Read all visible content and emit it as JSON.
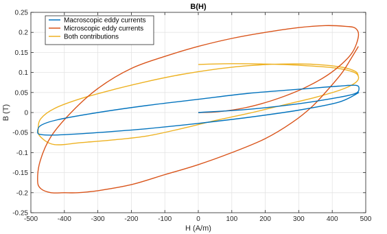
{
  "chart_data": {
    "type": "line",
    "title": "B(H)",
    "xlabel": "H (A/m)",
    "ylabel": "B (T)",
    "xlim": [
      -500,
      500
    ],
    "ylim": [
      -0.25,
      0.25
    ],
    "xticks": [
      -500,
      -400,
      -300,
      -200,
      -100,
      0,
      100,
      200,
      300,
      400,
      500
    ],
    "yticks": [
      0.25,
      0.2,
      0.15,
      0.1,
      0.05,
      0,
      -0.05,
      -0.1,
      -0.15,
      -0.2,
      -0.25
    ],
    "xtick_labels": [
      "-500",
      "-400",
      "-300",
      "-200",
      "-100",
      "0",
      "100",
      "200",
      "300",
      "400",
      "500"
    ],
    "ytick_labels": [
      "0.25",
      "0.2",
      "0.15",
      "0.1",
      "0.05",
      "0",
      "-0.05",
      "-0.1",
      "-0.15",
      "-0.2",
      "-0.25"
    ],
    "grid": true,
    "legend_position": "top-left",
    "series": [
      {
        "name": "Macroscopic eddy currents",
        "color": "#0072BD",
        "x": [
          0,
          150,
          300,
          420,
          470,
          480,
          470,
          420,
          300,
          150,
          0,
          -150,
          -300,
          -420,
          -470,
          -480,
          -470,
          -420,
          -300,
          -150,
          0,
          150,
          300,
          420,
          480
        ],
        "y": [
          0,
          0.008,
          0.022,
          0.038,
          0.048,
          0.06,
          0.068,
          0.066,
          0.058,
          0.048,
          0.033,
          0.018,
          0.0,
          -0.018,
          -0.032,
          -0.048,
          -0.055,
          -0.056,
          -0.05,
          -0.04,
          -0.027,
          -0.012,
          0.006,
          0.026,
          0.05
        ]
      },
      {
        "name": "Microscopic eddy currents",
        "color": "#D95319",
        "x": [
          0,
          60,
          140,
          220,
          300,
          370,
          420,
          460,
          478,
          470,
          440,
          380,
          300,
          200,
          100,
          0,
          -100,
          -200,
          -300,
          -380,
          -440,
          -472,
          -480,
          -470,
          -440,
          -400,
          -360,
          -300,
          -200,
          -100,
          0,
          100,
          200,
          280,
          340,
          390,
          430,
          460,
          478
        ],
        "y": [
          0,
          0.002,
          0.012,
          0.03,
          0.055,
          0.085,
          0.115,
          0.15,
          0.19,
          0.21,
          0.215,
          0.217,
          0.212,
          0.2,
          0.185,
          0.165,
          0.14,
          0.11,
          0.06,
          0.0,
          -0.06,
          -0.12,
          -0.17,
          -0.19,
          -0.2,
          -0.2,
          -0.2,
          -0.195,
          -0.18,
          -0.155,
          -0.13,
          -0.1,
          -0.065,
          -0.025,
          0.015,
          0.06,
          0.1,
          0.14,
          0.165
        ]
      },
      {
        "name": "Both contributions",
        "color": "#EDB120",
        "x": [
          0,
          100,
          200,
          300,
          400,
          460,
          478,
          470,
          430,
          350,
          250,
          150,
          50,
          -50,
          -150,
          -250,
          -350,
          -430,
          -472,
          -478,
          -470,
          -430,
          -350,
          -250,
          -150,
          -50,
          50,
          150,
          250,
          350,
          430,
          470,
          478
        ],
        "y": [
          0.12,
          0.122,
          0.121,
          0.118,
          0.112,
          0.102,
          0.09,
          0.075,
          0.058,
          0.038,
          0.018,
          -0.002,
          -0.02,
          -0.04,
          -0.058,
          -0.068,
          -0.075,
          -0.08,
          -0.06,
          -0.04,
          -0.015,
          0.01,
          0.035,
          0.058,
          0.078,
          0.095,
          0.108,
          0.117,
          0.121,
          0.12,
          0.113,
          0.102,
          0.09
        ]
      }
    ]
  }
}
